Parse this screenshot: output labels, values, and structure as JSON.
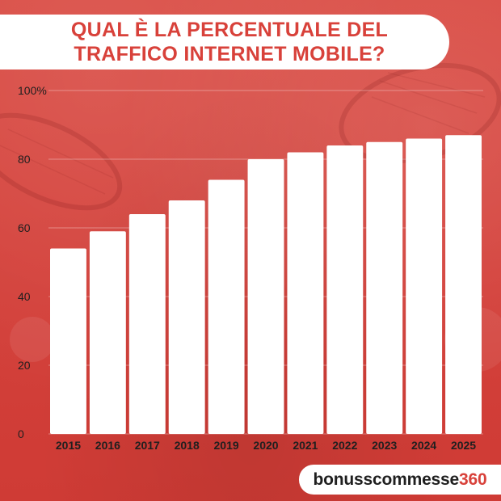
{
  "header": {
    "title_line1": "QUAL È LA PERCENTUALE DEL",
    "title_line2": "TRAFFICO INTERNET MOBILE?"
  },
  "brand": {
    "name_part": "bonusscommesse",
    "number_part": "360"
  },
  "colors": {
    "background": "#d8413a",
    "bars": "#ffffff",
    "text_dark": "#1f1f1f",
    "accent": "#d8413a"
  },
  "chart_data": {
    "type": "bar",
    "categories": [
      "2015",
      "2016",
      "2017",
      "2018",
      "2019",
      "2020",
      "2021",
      "2022",
      "2023",
      "2024",
      "2025"
    ],
    "values": [
      54,
      59,
      64,
      68,
      74,
      80,
      82,
      84,
      85,
      86,
      87
    ],
    "ylim": [
      0,
      100
    ],
    "yticks": [
      {
        "value": 0,
        "label": "0"
      },
      {
        "value": 20,
        "label": "20"
      },
      {
        "value": 40,
        "label": "40"
      },
      {
        "value": 60,
        "label": "60"
      },
      {
        "value": 80,
        "label": "80"
      },
      {
        "value": 100,
        "label": "100%"
      }
    ],
    "grid": true,
    "legend": "none"
  }
}
